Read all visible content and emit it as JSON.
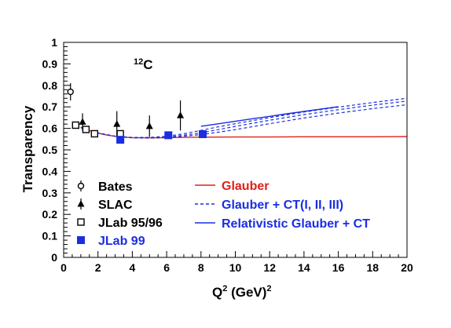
{
  "chart_data": {
    "type": "scatter",
    "annotation": {
      "superscript": "12",
      "text": "C"
    },
    "xlabel": {
      "base": "Q",
      "sup": "2",
      "unit": " (GeV)",
      "unit_sup": "2"
    },
    "ylabel": "Transparency",
    "xlim": [
      0,
      20
    ],
    "ylim": [
      0,
      1
    ],
    "x_ticks": [
      0,
      2,
      4,
      6,
      8,
      10,
      12,
      14,
      16,
      18,
      20
    ],
    "y_ticks": [
      "0",
      "0.1",
      "0.2",
      "0.3",
      "0.4",
      "0.5",
      "0.6",
      "0.7",
      "0.8",
      "0.9",
      "1"
    ],
    "grid": false,
    "legend_position": "bottom",
    "series": [
      {
        "name": "Bates",
        "kind": "points",
        "marker": "open-circle",
        "color": "#000000",
        "points": [
          {
            "x": 0.4,
            "y": 0.77,
            "err": 0.04
          }
        ]
      },
      {
        "name": "SLAC",
        "kind": "points",
        "marker": "filled-triangle",
        "color": "#000000",
        "points": [
          {
            "x": 1.1,
            "y": 0.63,
            "err": 0.04
          },
          {
            "x": 3.1,
            "y": 0.62,
            "err": 0.06
          },
          {
            "x": 5.0,
            "y": 0.61,
            "err": 0.05
          },
          {
            "x": 6.8,
            "y": 0.66,
            "err": 0.07
          }
        ]
      },
      {
        "name": "JLab 95/96",
        "kind": "points",
        "marker": "open-square",
        "color": "#000000",
        "points": [
          {
            "x": 0.7,
            "y": 0.615,
            "err": 0.01
          },
          {
            "x": 1.3,
            "y": 0.595,
            "err": 0.01
          },
          {
            "x": 1.8,
            "y": 0.575,
            "err": 0.01
          },
          {
            "x": 3.3,
            "y": 0.575,
            "err": 0.012
          }
        ]
      },
      {
        "name": "JLab 99",
        "kind": "points",
        "marker": "filled-square",
        "color": "#1a2ee0",
        "points": [
          {
            "x": 3.3,
            "y": 0.547,
            "err": 0.01
          },
          {
            "x": 6.1,
            "y": 0.568,
            "err": 0.01
          },
          {
            "x": 8.1,
            "y": 0.573,
            "err": 0.01
          }
        ]
      },
      {
        "name": "Glauber",
        "kind": "line",
        "style": "solid",
        "color": "#e0201a",
        "x": [
          1.0,
          1.5,
          2.0,
          2.5,
          3.0,
          3.5,
          4.0,
          5.0,
          6.0,
          7.0,
          8.0,
          10.0,
          12.0,
          14.0,
          16.0,
          18.0,
          20.0
        ],
        "y": [
          0.604,
          0.59,
          0.578,
          0.569,
          0.563,
          0.559,
          0.557,
          0.556,
          0.557,
          0.558,
          0.559,
          0.56,
          0.56,
          0.561,
          0.561,
          0.561,
          0.562
        ]
      },
      {
        "name": "Glauber + CT(I, II, III)",
        "kind": "line-group",
        "style": "dashed",
        "color": "#1a2ee0",
        "lines": [
          {
            "x": [
              1.0,
              2.0,
              3.0,
              4.0,
              5.0,
              6.0,
              7.0,
              8.0,
              9.0,
              10.0,
              12.0,
              14.0,
              16.0,
              18.0,
              20.0
            ],
            "y": [
              0.604,
              0.579,
              0.564,
              0.558,
              0.558,
              0.563,
              0.575,
              0.591,
              0.607,
              0.622,
              0.65,
              0.676,
              0.699,
              0.72,
              0.74
            ]
          },
          {
            "x": [
              1.0,
              2.0,
              3.0,
              4.0,
              5.0,
              6.0,
              7.0,
              8.0,
              9.0,
              10.0,
              12.0,
              14.0,
              16.0,
              18.0,
              20.0
            ],
            "y": [
              0.604,
              0.578,
              0.563,
              0.557,
              0.556,
              0.559,
              0.568,
              0.58,
              0.594,
              0.609,
              0.638,
              0.664,
              0.687,
              0.708,
              0.727
            ]
          },
          {
            "x": [
              1.0,
              2.0,
              3.0,
              4.0,
              5.0,
              6.0,
              7.0,
              8.0,
              9.0,
              10.0,
              12.0,
              14.0,
              16.0,
              18.0,
              20.0
            ],
            "y": [
              0.604,
              0.578,
              0.563,
              0.556,
              0.555,
              0.557,
              0.563,
              0.571,
              0.582,
              0.594,
              0.622,
              0.648,
              0.671,
              0.692,
              0.71
            ]
          }
        ]
      },
      {
        "name": "Relativistic Glauber + CT",
        "kind": "line",
        "style": "solid",
        "color": "#1a2ee0",
        "x": [
          8.0,
          9.0,
          10.0,
          11.0,
          12.0,
          13.0,
          14.0,
          15.0,
          16.0
        ],
        "y": [
          0.61,
          0.621,
          0.633,
          0.645,
          0.656,
          0.668,
          0.679,
          0.69,
          0.701
        ]
      }
    ]
  }
}
